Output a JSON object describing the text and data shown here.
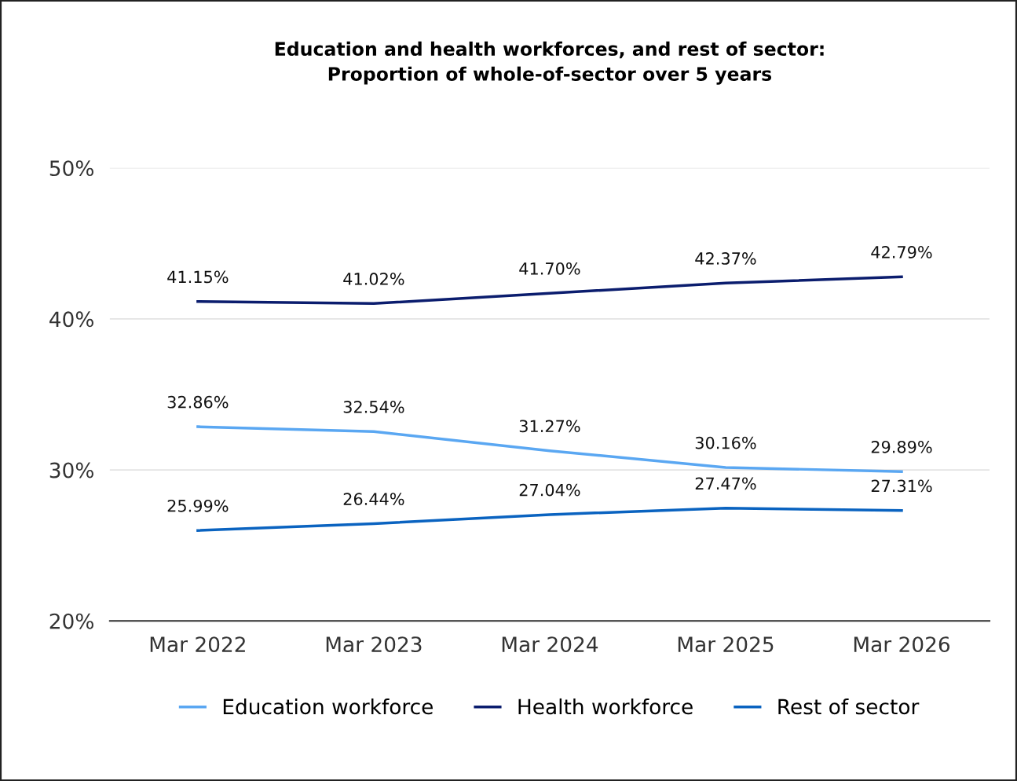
{
  "chart_data": {
    "type": "line",
    "title": "Education and health workforces, and rest of sector:\nProportion of whole-of-sector over 5 years",
    "categories": [
      "Mar 2022",
      "Mar 2023",
      "Mar 2024",
      "Mar 2025",
      "Mar 2026"
    ],
    "series": [
      {
        "name": "Education workforce",
        "color": "#5aa7f2",
        "values": [
          32.86,
          32.54,
          31.27,
          30.16,
          29.89
        ],
        "value_labels": [
          "32.86%",
          "32.54%",
          "31.27%",
          "30.16%",
          "29.89%"
        ]
      },
      {
        "name": "Health workforce",
        "color": "#0b1d6e",
        "values": [
          41.15,
          41.02,
          41.7,
          42.37,
          42.79
        ],
        "value_labels": [
          "41.15%",
          "41.02%",
          "41.70%",
          "42.37%",
          "42.79%"
        ]
      },
      {
        "name": "Rest of sector",
        "color": "#0a63c0",
        "values": [
          25.99,
          26.44,
          27.04,
          27.47,
          27.31
        ],
        "value_labels": [
          "25.99%",
          "26.44%",
          "27.04%",
          "27.47%",
          "27.31%"
        ]
      }
    ],
    "ylim": [
      20,
      50
    ],
    "yticks": [
      {
        "value": 20,
        "label": "20%"
      },
      {
        "value": 30,
        "label": "30%"
      },
      {
        "value": 40,
        "label": "40%"
      },
      {
        "value": 50,
        "label": "50%"
      }
    ],
    "grid": "y",
    "legend": "bottom",
    "marker": "none",
    "line_style": "solid"
  }
}
